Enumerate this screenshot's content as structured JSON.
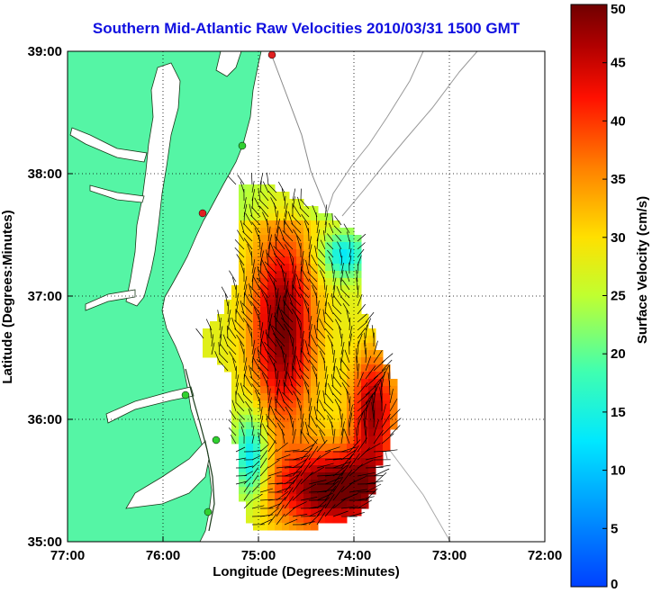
{
  "title": "Southern Mid-Atlantic Raw Velocities 2010/03/31 1500 GMT",
  "map": {
    "xlabel": "Longitude (Degrees:Minutes)",
    "ylabel": "Latitude (Degrees:Minutes)",
    "lon_ticks": [
      "77:00",
      "76:00",
      "75:00",
      "74:00",
      "73:00",
      "72:00"
    ],
    "lat_ticks": [
      "39:00",
      "38:00",
      "37:00",
      "36:00",
      "35:00"
    ],
    "lon_range": [
      -77,
      -72
    ],
    "lat_range": [
      35,
      39
    ],
    "land_color": "#55f5a5",
    "grid": true
  },
  "colorbar": {
    "label": "Surface Velocity (cm/s)",
    "ticks": [
      "0",
      "5",
      "10",
      "15",
      "20",
      "25",
      "30",
      "35",
      "40",
      "45",
      "50"
    ],
    "range": [
      0,
      50
    ],
    "colormap": "jet"
  },
  "stations": [
    {
      "color": "#e02020"
    },
    {
      "color": "#30d030"
    },
    {
      "color": "#e02020"
    },
    {
      "color": "#30d030"
    },
    {
      "color": "#30d030"
    },
    {
      "color": "#30d030"
    }
  ]
}
